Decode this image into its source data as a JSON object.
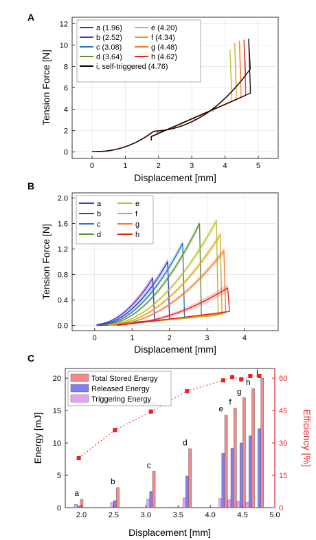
{
  "chart_data": [
    {
      "panel": "A",
      "type": "line",
      "xlabel": "Displacement [mm]",
      "ylabel": "Tension Force [N]",
      "xlim": [
        -0.6,
        5.6
      ],
      "ylim": [
        -0.6,
        12.6
      ],
      "xticks": [
        "0",
        "1",
        "2",
        "3",
        "4",
        "5"
      ],
      "yticks": [
        "0",
        "2",
        "4",
        "6",
        "8",
        "10",
        "12"
      ],
      "legend_position": "top-left",
      "series": [
        {
          "name": "a (1.96)",
          "color": "#3d2bbd",
          "peak_x": 1.96,
          "peak_y": 2.1
        },
        {
          "name": "b (2.52)",
          "color": "#2e44c9",
          "peak_x": 2.52,
          "peak_y": 3.4
        },
        {
          "name": "c (3.08)",
          "color": "#1e78c4",
          "peak_x": 3.08,
          "peak_y": 5.0
        },
        {
          "name": "d (3.64)",
          "color": "#5a8e2c",
          "peak_x": 3.64,
          "peak_y": 7.3
        },
        {
          "name": "e (4.20)",
          "color": "#b5c22e",
          "peak_x": 4.2,
          "peak_y": 9.6
        },
        {
          "name": "f (4.34)",
          "color": "#e0a21c",
          "peak_x": 4.34,
          "peak_y": 10.2
        },
        {
          "name": "g (4.48)",
          "color": "#f07b2a",
          "peak_x": 4.48,
          "peak_y": 10.4
        },
        {
          "name": "h (4.62)",
          "color": "#e8231f",
          "peak_x": 4.62,
          "peak_y": 10.5
        },
        {
          "name": "i, self-triggered (4.76)",
          "color": "#000000",
          "peak_x": 4.76,
          "peak_y": 10.6
        }
      ]
    },
    {
      "panel": "B",
      "type": "line",
      "xlabel": "Displacement [mm]",
      "ylabel": "Tension Force [N]",
      "xlim": [
        -0.6,
        4.9
      ],
      "ylim": [
        -0.08,
        2.08
      ],
      "xticks": [
        "0",
        "1",
        "2",
        "3",
        "4"
      ],
      "yticks": [
        "0.0",
        "0.4",
        "0.8",
        "1.2",
        "1.6",
        "2.0"
      ],
      "legend_position": "top-left",
      "series": [
        {
          "name": "a",
          "color": "#5a2bc0",
          "peak_x": 1.55,
          "peak_y": 0.72
        },
        {
          "name": "b",
          "color": "#2c3fc6",
          "peak_x": 1.95,
          "peak_y": 0.98
        },
        {
          "name": "c",
          "color": "#1f7ac4",
          "peak_x": 2.35,
          "peak_y": 1.27
        },
        {
          "name": "d",
          "color": "#5a8e2c",
          "peak_x": 2.8,
          "peak_y": 1.58
        },
        {
          "name": "e",
          "color": "#b5c22e",
          "peak_x": 3.25,
          "peak_y": 1.62
        },
        {
          "name": "f",
          "color": "#e0a21c",
          "peak_x": 3.35,
          "peak_y": 1.4
        },
        {
          "name": "g",
          "color": "#f07b2a",
          "peak_x": 3.45,
          "peak_y": 1.15
        },
        {
          "name": "h",
          "color": "#e8231f",
          "peak_x": 3.55,
          "peak_y": 0.57
        }
      ]
    },
    {
      "panel": "C",
      "type": "bar",
      "xlabel": "Displacement [mm]",
      "ylabel": "Energy [mJ]",
      "y2label": "Efficiency [%]",
      "xlim": [
        1.75,
        5.0
      ],
      "ylim": [
        0,
        21.5
      ],
      "y2lim": [
        0,
        64.5
      ],
      "xticks": [
        "2.0",
        "2.5",
        "3.0",
        "3.5",
        "4.0",
        "4.5",
        "5.0"
      ],
      "yticks": [
        "0",
        "5",
        "10",
        "15",
        "20"
      ],
      "y2ticks": [
        "0",
        "15",
        "30",
        "45",
        "60"
      ],
      "legend_position": "top-left",
      "categories": [
        "a",
        "b",
        "c",
        "d",
        "e",
        "f",
        "g",
        "h",
        "i"
      ],
      "x": [
        1.96,
        2.52,
        3.08,
        3.64,
        4.2,
        4.34,
        4.48,
        4.62,
        4.76
      ],
      "series": [
        {
          "name": "Total Stored Energy",
          "color": "#f28b8b",
          "values": [
            1.3,
            3.1,
            5.6,
            9.1,
            14.3,
            15.4,
            17.0,
            18.4,
            20.0
          ]
        },
        {
          "name": "Released Energy",
          "color": "#7f7ff2",
          "values": [
            0.3,
            1.1,
            2.5,
            4.9,
            8.4,
            9.2,
            10.0,
            11.1,
            12.2
          ]
        },
        {
          "name": "Triggering Energy",
          "color": "#e8a0f5",
          "values": [
            0.5,
            0.8,
            1.3,
            1.5,
            1.4,
            1.2,
            1.0,
            0.8,
            0.0
          ]
        }
      ],
      "efficiency": {
        "color": "#e8231f",
        "values": [
          23,
          36,
          44.5,
          54,
          59,
          60.5,
          59.5,
          61,
          61
        ]
      }
    }
  ]
}
